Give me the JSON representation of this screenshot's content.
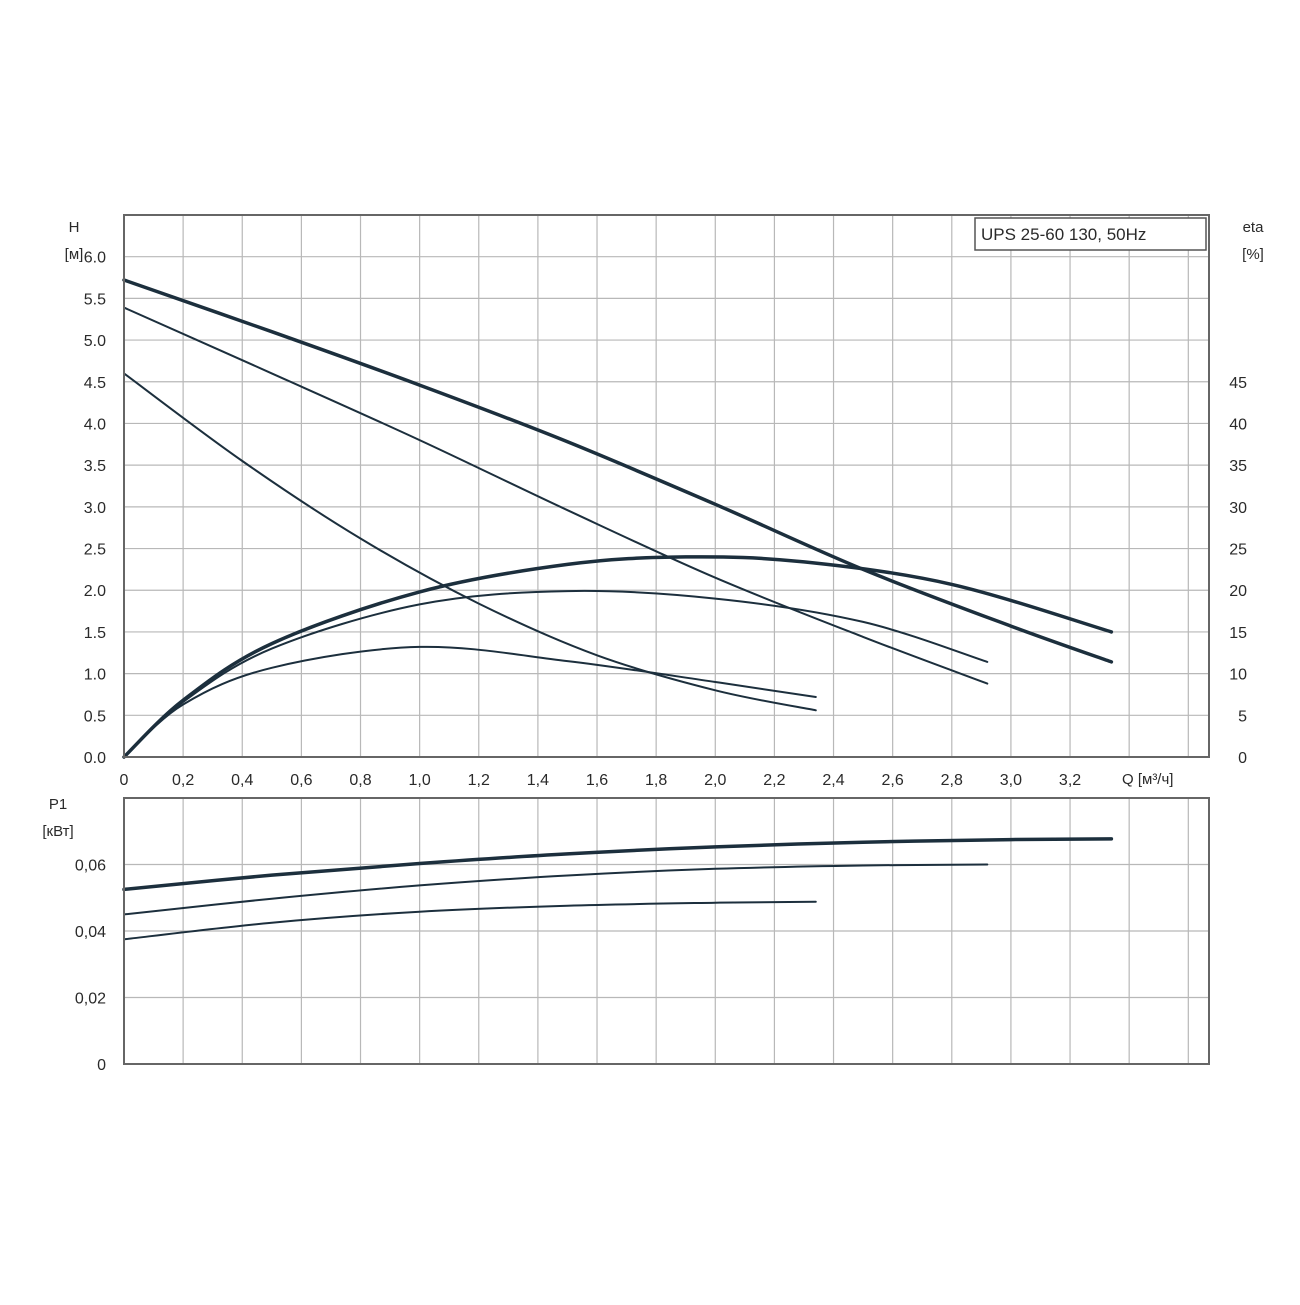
{
  "colors": {
    "curve": "#1c2f3d",
    "grid": "#b8b8b8",
    "frame": "#666666",
    "text": "#2a2a2a"
  },
  "chart_data": [
    {
      "type": "line",
      "title": "UPS 25-60 130, 50Hz",
      "xlabel": "Q [м³/ч]",
      "ylabel_left_name": "H",
      "ylabel_left_unit": "[м]",
      "ylabel_right_name": "eta",
      "ylabel_right_unit": "[%]",
      "xlim": [
        0,
        3.67
      ],
      "ylim": [
        0,
        6.5
      ],
      "y2lim": [
        0,
        65
      ],
      "grid": true,
      "x_ticks": [
        "0",
        "0,2",
        "0,4",
        "0,6",
        "0,8",
        "1,0",
        "1,2",
        "1,4",
        "1,6",
        "1,8",
        "2,0",
        "2,2",
        "2,4",
        "2,6",
        "2,8",
        "3,0",
        "3,2"
      ],
      "y_ticks": [
        "0.0",
        "0.5",
        "1.0",
        "1.5",
        "2.0",
        "2.5",
        "3.0",
        "3.5",
        "4.0",
        "4.5",
        "5.0",
        "5.5",
        "6.0"
      ],
      "y2_ticks": [
        "0",
        "5",
        "10",
        "15",
        "20",
        "25",
        "30",
        "35",
        "40",
        "45"
      ],
      "series": [
        {
          "axis": "H",
          "width": 3.5,
          "x": [
            0,
            0.5,
            1.0,
            1.5,
            2.0,
            2.5,
            3.0,
            3.34
          ],
          "values": [
            5.72,
            5.1,
            4.46,
            3.78,
            3.03,
            2.25,
            1.57,
            1.14
          ]
        },
        {
          "axis": "H",
          "width": 2.0,
          "x": [
            0,
            0.5,
            1.0,
            1.5,
            2.0,
            2.5,
            2.92
          ],
          "values": [
            5.39,
            4.6,
            3.8,
            2.96,
            2.15,
            1.44,
            0.88
          ]
        },
        {
          "axis": "H",
          "width": 2.0,
          "x": [
            0,
            0.4,
            0.8,
            1.2,
            1.6,
            2.0,
            2.34
          ],
          "values": [
            4.6,
            3.55,
            2.62,
            1.84,
            1.22,
            0.8,
            0.56
          ]
        },
        {
          "axis": "eta",
          "width": 3.5,
          "x": [
            0,
            0.2,
            0.5,
            1.0,
            1.5,
            1.9,
            2.3,
            2.8,
            3.34
          ],
          "values": [
            0,
            6.8,
            13.6,
            19.8,
            23.1,
            24.0,
            23.4,
            20.7,
            15.0
          ]
        },
        {
          "axis": "eta",
          "width": 2.0,
          "x": [
            0,
            0.2,
            0.5,
            1.0,
            1.5,
            2.0,
            2.5,
            2.92
          ],
          "values": [
            0,
            6.6,
            13.0,
            18.3,
            19.9,
            19.0,
            16.2,
            11.4
          ]
        },
        {
          "axis": "eta",
          "width": 2.0,
          "x": [
            0,
            0.2,
            0.5,
            1.0,
            1.5,
            2.0,
            2.34
          ],
          "values": [
            0,
            6.3,
            10.7,
            13.2,
            11.5,
            9.0,
            7.2
          ]
        }
      ]
    },
    {
      "type": "line",
      "ylabel_name": "P1",
      "ylabel_unit": "[кВт]",
      "xlim": [
        0,
        3.67
      ],
      "ylim": [
        0,
        0.08
      ],
      "grid": true,
      "y_ticks": [
        "0",
        "0,02",
        "0,04",
        "0,06"
      ],
      "series": [
        {
          "width": 3.5,
          "x": [
            0,
            0.5,
            1.0,
            1.5,
            2.0,
            2.5,
            3.0,
            3.34
          ],
          "values": [
            0.0525,
            0.0568,
            0.0603,
            0.0632,
            0.0653,
            0.0667,
            0.0675,
            0.0677
          ]
        },
        {
          "width": 2.0,
          "x": [
            0,
            0.5,
            1.0,
            1.5,
            2.0,
            2.5,
            2.92
          ],
          "values": [
            0.045,
            0.0497,
            0.0537,
            0.0567,
            0.0587,
            0.0597,
            0.06
          ]
        },
        {
          "width": 2.0,
          "x": [
            0,
            0.5,
            1.0,
            1.5,
            2.0,
            2.34
          ],
          "values": [
            0.0375,
            0.0425,
            0.0458,
            0.0476,
            0.0485,
            0.0488
          ]
        }
      ]
    }
  ]
}
